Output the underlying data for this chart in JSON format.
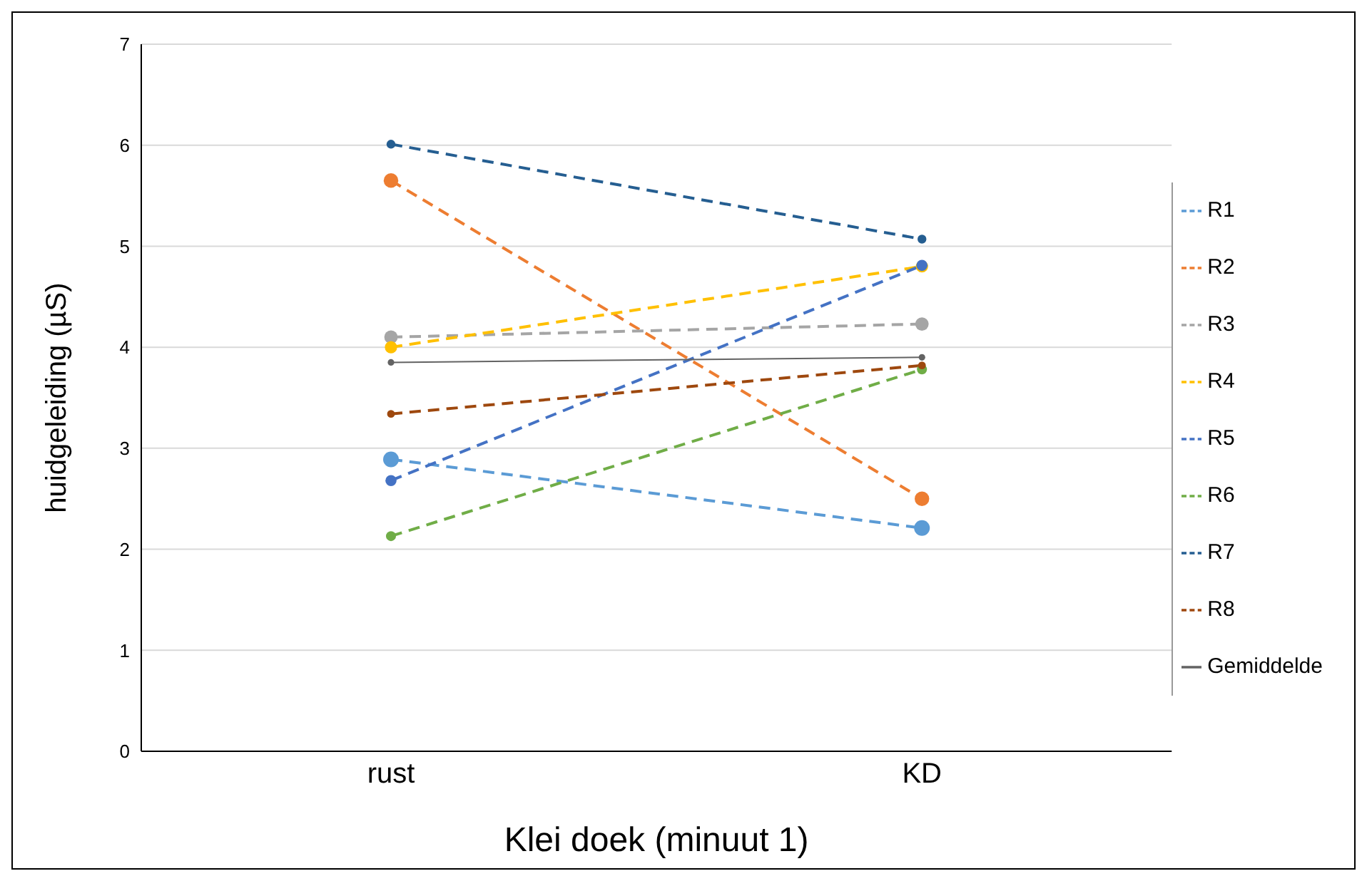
{
  "chart_data": {
    "type": "line",
    "xlabel": "Klei doek  (minuut 1)",
    "ylabel": "huidgeleiding (µS)",
    "categories": [
      "rust",
      "KD"
    ],
    "series": [
      {
        "name": "R1",
        "color": "#5b9bd5",
        "values": [
          2.89,
          2.21
        ]
      },
      {
        "name": "R2",
        "color": "#ed7d31",
        "values": [
          5.65,
          2.5
        ]
      },
      {
        "name": "R3",
        "color": "#a5a5a5",
        "values": [
          4.1,
          4.23
        ]
      },
      {
        "name": "R4",
        "color": "#ffc000",
        "values": [
          4.0,
          4.8
        ]
      },
      {
        "name": "R5",
        "color": "#4472c4",
        "values": [
          2.68,
          4.81
        ]
      },
      {
        "name": "R6",
        "color": "#70ad47",
        "values": [
          2.13,
          3.78
        ]
      },
      {
        "name": "R7",
        "color": "#255e91",
        "values": [
          6.01,
          5.07
        ]
      },
      {
        "name": "R8",
        "color": "#9e480e",
        "values": [
          3.34,
          3.82
        ]
      },
      {
        "name": "Gemiddelde",
        "color": "#636363",
        "values": [
          3.85,
          3.9
        ],
        "line_style": "solid"
      }
    ],
    "ylim": [
      0,
      7
    ],
    "yticks": [
      0,
      1,
      2,
      3,
      4,
      5,
      6,
      7
    ],
    "grid": "y",
    "legend": "right",
    "marker": "circle",
    "line_style": "dashed"
  }
}
